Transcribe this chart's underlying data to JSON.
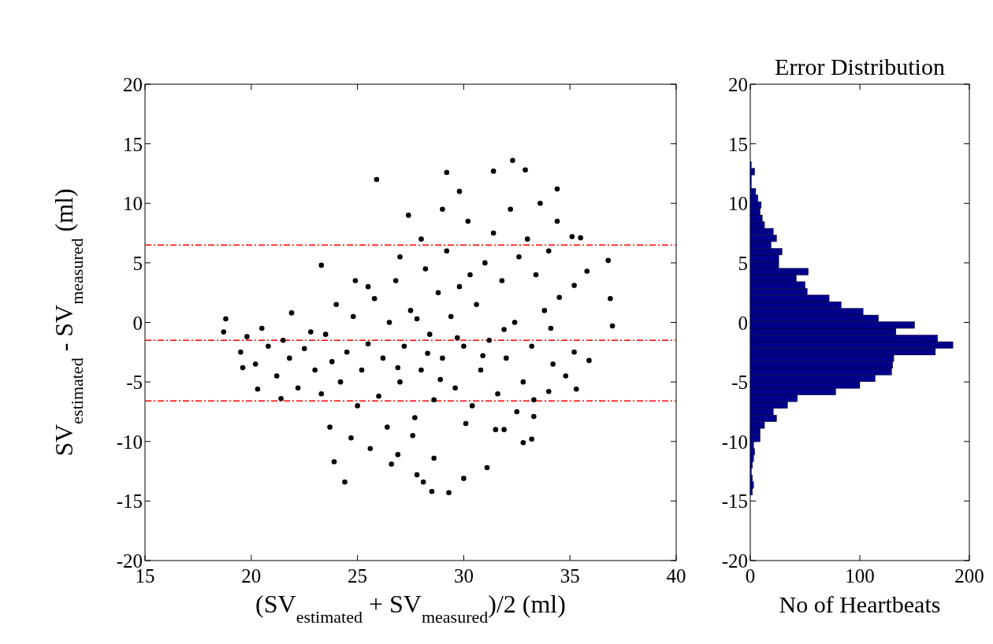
{
  "chart_data": [
    {
      "type": "scatter",
      "xlabel": "(SV$_{estimated}$ + SV$_{measured}$)/2 (ml)",
      "ylabel": "SV$_{estimated}$ - SV$_{measured}$ (ml)",
      "color": "#000000",
      "marker": "circle",
      "xlim": [
        15,
        40
      ],
      "ylim": [
        -20,
        20
      ],
      "xticks": [
        15,
        20,
        25,
        30,
        35,
        40
      ],
      "yticks": [
        -20,
        -15,
        -10,
        -5,
        0,
        5,
        10,
        15,
        20
      ],
      "x": [
        25.9,
        29.2,
        31.4,
        32.3,
        32.9,
        34.4,
        29.8,
        27.4,
        23.3,
        24.9,
        36.8,
        35.8,
        36.9,
        37.0,
        35.9,
        35.3,
        18.8,
        18.7,
        19.6,
        20.3,
        21.4,
        21.9,
        23.7,
        23.9,
        24.4,
        24.7,
        25.6,
        26.6,
        26.9,
        27.8,
        28.1,
        28.5,
        29.3,
        30.0,
        31.1,
        28.6,
        31.9,
        32.8,
        33.2,
        33.3,
        34.8,
        35.2,
        35.1,
        35.5,
        35.2,
        34.5,
        34.1,
        34.0,
        19.5,
        19.8,
        20.2,
        20.5,
        20.8,
        21.2,
        21.5,
        21.8,
        22.2,
        22.5,
        22.8,
        23.0,
        23.3,
        23.5,
        23.8,
        24.0,
        24.2,
        24.5,
        24.8,
        25.0,
        25.2,
        25.5,
        25.8,
        26.0,
        26.2,
        26.5,
        26.8,
        27.0,
        27.2,
        27.5,
        27.7,
        28.0,
        28.2,
        28.4,
        28.6,
        28.8,
        29.0,
        29.2,
        29.4,
        29.6,
        29.8,
        30.0,
        30.2,
        30.4,
        30.6,
        30.8,
        31.0,
        31.2,
        31.4,
        31.6,
        31.8,
        32.0,
        32.2,
        32.4,
        32.6,
        32.8,
        33.0,
        33.2,
        33.4,
        33.6,
        33.8,
        34.0,
        34.2,
        34.4,
        30.1,
        27.6,
        26.4,
        31.5,
        29.0,
        28.0,
        27.0,
        25.5,
        32.5,
        33.3,
        26.9,
        28.3,
        29.7,
        30.9,
        31.9,
        30.3,
        28.9,
        27.8
      ],
      "values": [
        12.0,
        12.6,
        12.7,
        13.6,
        12.8,
        11.2,
        11.0,
        9.0,
        4.8,
        3.5,
        5.2,
        4.3,
        2.0,
        -0.3,
        -3.2,
        -5.6,
        0.3,
        -0.8,
        -3.8,
        -5.6,
        -6.4,
        0.8,
        -8.8,
        -11.7,
        -13.4,
        -9.7,
        -10.6,
        -11.9,
        -11.1,
        -12.8,
        -13.4,
        -14.2,
        -14.3,
        -13.1,
        -12.2,
        -11.4,
        -9.0,
        -10.1,
        -9.8,
        -7.9,
        -4.5,
        -2.5,
        7.2,
        7.1,
        3.1,
        2.1,
        -0.5,
        -5.8,
        -2.5,
        -1.2,
        -3.5,
        -0.5,
        -2.0,
        -4.5,
        -1.5,
        -3.0,
        -5.5,
        -2.2,
        -0.8,
        -4.0,
        -6.0,
        -1.0,
        -3.3,
        1.5,
        -5.0,
        -2.5,
        0.5,
        -7.0,
        -4.0,
        -1.8,
        2.0,
        -6.2,
        -3.0,
        0.0,
        3.5,
        -5.0,
        -2.0,
        1.0,
        -8.0,
        -4.0,
        4.5,
        -1.0,
        -6.5,
        2.5,
        -3.0,
        6.0,
        0.5,
        -5.5,
        3.0,
        -2.0,
        8.5,
        -7.0,
        1.5,
        -4.0,
        5.0,
        -1.5,
        7.5,
        -6.0,
        3.5,
        -3.0,
        9.5,
        0.0,
        5.5,
        -5.0,
        7.0,
        -2.0,
        4.0,
        10.0,
        1.0,
        6.0,
        -3.5,
        8.5,
        -8.5,
        -9.5,
        -8.8,
        -9.0,
        9.5,
        7.0,
        5.5,
        3.0,
        -7.5,
        -6.5,
        -3.8,
        -2.6,
        -1.3,
        -2.8,
        -0.6,
        4.0,
        -4.8,
        0.3
      ],
      "ref_lines": [
        {
          "axis": "y",
          "value": 6.5,
          "color": "#ff0000",
          "line_style": "dashed"
        },
        {
          "axis": "y",
          "value": -1.5,
          "color": "#ff0000",
          "line_style": "dashed"
        },
        {
          "axis": "y",
          "value": -6.6,
          "color": "#ff0000",
          "line_style": "dashed"
        }
      ]
    },
    {
      "type": "histogram",
      "orientation": "horizontal",
      "title": "Error Distribution",
      "xlabel": "No of Heartbeats",
      "color": "#00008b",
      "xlim": [
        0,
        200
      ],
      "xticks": [
        0,
        100,
        200
      ],
      "ylim": [
        -20,
        20
      ],
      "yticks": [
        -20,
        -15,
        -10,
        -5,
        0,
        5,
        10,
        15,
        20
      ],
      "bins": [
        -14.5,
        -13.94,
        -13.38,
        -12.82,
        -12.26,
        -11.7,
        -11.14,
        -10.58,
        -10.02,
        -9.46,
        -8.9,
        -8.34,
        -7.78,
        -7.22,
        -6.66,
        -6.1,
        -5.54,
        -4.98,
        -4.42,
        -3.86,
        -3.3,
        -2.74,
        -2.18,
        -1.62,
        -1.06,
        -0.5,
        0.06,
        0.62,
        1.18,
        1.74,
        2.3,
        2.86,
        3.42,
        3.98,
        4.54,
        5.1,
        5.66,
        6.22,
        6.78,
        7.34,
        7.9,
        8.46,
        9.02,
        9.58,
        10.14,
        10.7,
        11.26,
        11.82,
        12.38,
        12.94,
        13.5
      ],
      "values": [
        2,
        3,
        2,
        1,
        2,
        3,
        4,
        3,
        9,
        9,
        13,
        24,
        21,
        34,
        43,
        78,
        100,
        114,
        129,
        130,
        131,
        169,
        185,
        171,
        133,
        150,
        117,
        103,
        83,
        72,
        52,
        50,
        42,
        53,
        26,
        26,
        29,
        19,
        24,
        21,
        13,
        11,
        9,
        10,
        7,
        5,
        1,
        1,
        4,
        1
      ]
    }
  ]
}
